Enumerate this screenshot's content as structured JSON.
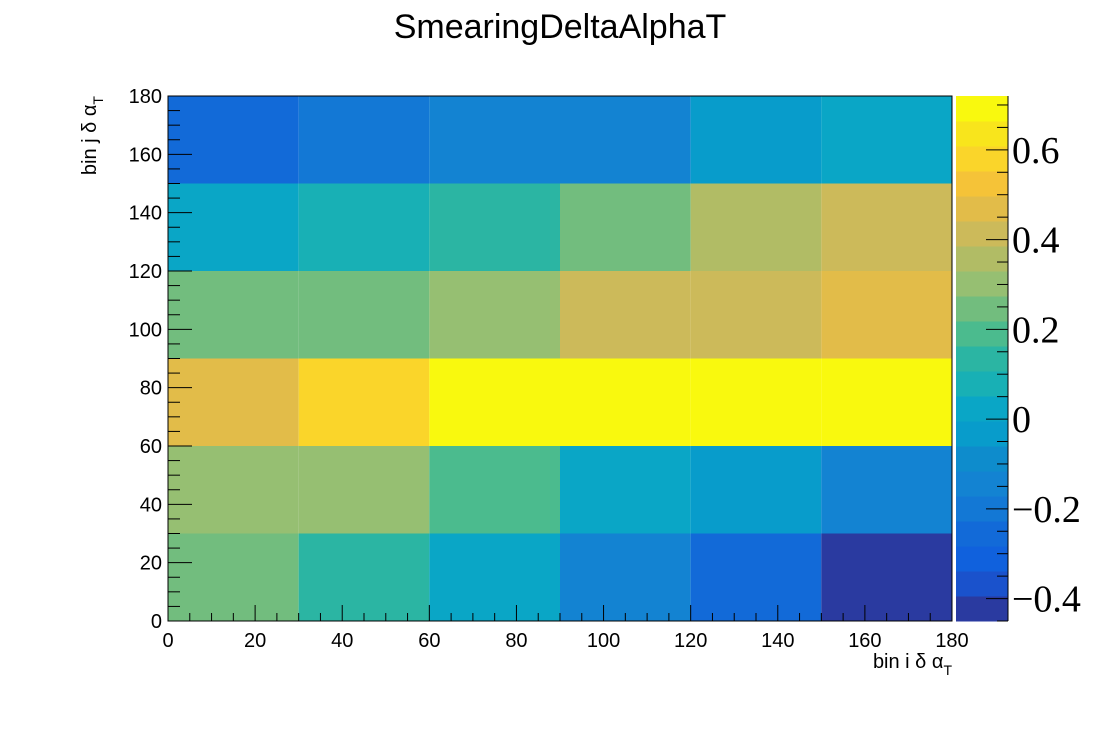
{
  "chart_data": {
    "type": "heatmap",
    "title": "SmearingDeltaAlphaT",
    "xlabel": {
      "text": "bin i δ α",
      "sub": "T"
    },
    "ylabel": {
      "text": "bin j δ α",
      "sub": "T"
    },
    "xlim": [
      0,
      180
    ],
    "ylim": [
      0,
      180
    ],
    "x_edges": [
      0,
      30,
      60,
      90,
      120,
      150,
      180
    ],
    "y_edges": [
      0,
      30,
      60,
      90,
      120,
      150,
      180
    ],
    "x_tick_labels": [
      "0",
      "20",
      "40",
      "60",
      "80",
      "100",
      "120",
      "140",
      "160",
      "180"
    ],
    "y_tick_labels": [
      "0",
      "20",
      "40",
      "60",
      "80",
      "100",
      "120",
      "140",
      "160",
      "180"
    ],
    "z": [
      [
        0.24,
        0.12,
        0.02,
        -0.14,
        -0.25,
        -0.45
      ],
      [
        0.3,
        0.3,
        0.19,
        0.03,
        -0.02,
        -0.15
      ],
      [
        0.48,
        0.58,
        0.67,
        0.67,
        0.67,
        0.72
      ],
      [
        0.25,
        0.25,
        0.31,
        0.42,
        0.42,
        0.49
      ],
      [
        0.02,
        0.06,
        0.13,
        0.25,
        0.35,
        0.42
      ],
      [
        -0.27,
        -0.22,
        -0.17,
        -0.12,
        -0.04,
        0.03
      ]
    ],
    "zlim": [
      -0.45,
      0.72
    ],
    "colorbar_ticks": [
      -0.4,
      -0.2,
      0,
      0.2,
      0.4,
      0.6
    ],
    "colorbar_tick_labels": [
      "−0.4",
      "−0.2",
      "0",
      "0.2",
      "0.4",
      "0.6"
    ],
    "palette": [
      "#2a3aa0",
      "#1a52cc",
      "#1061dd",
      "#126ad8",
      "#1378d5",
      "#1383d2",
      "#0e8ccc",
      "#089ccb",
      "#0aa6c6",
      "#18b0b5",
      "#2bb5a3",
      "#4bbb8e",
      "#72bd7e",
      "#96bf72",
      "#b1bc65",
      "#ccba5a",
      "#e2bc49",
      "#f5c338",
      "#fad52a",
      "#f8e51c",
      "#f9f90e"
    ],
    "grid": false,
    "legend": "none"
  }
}
